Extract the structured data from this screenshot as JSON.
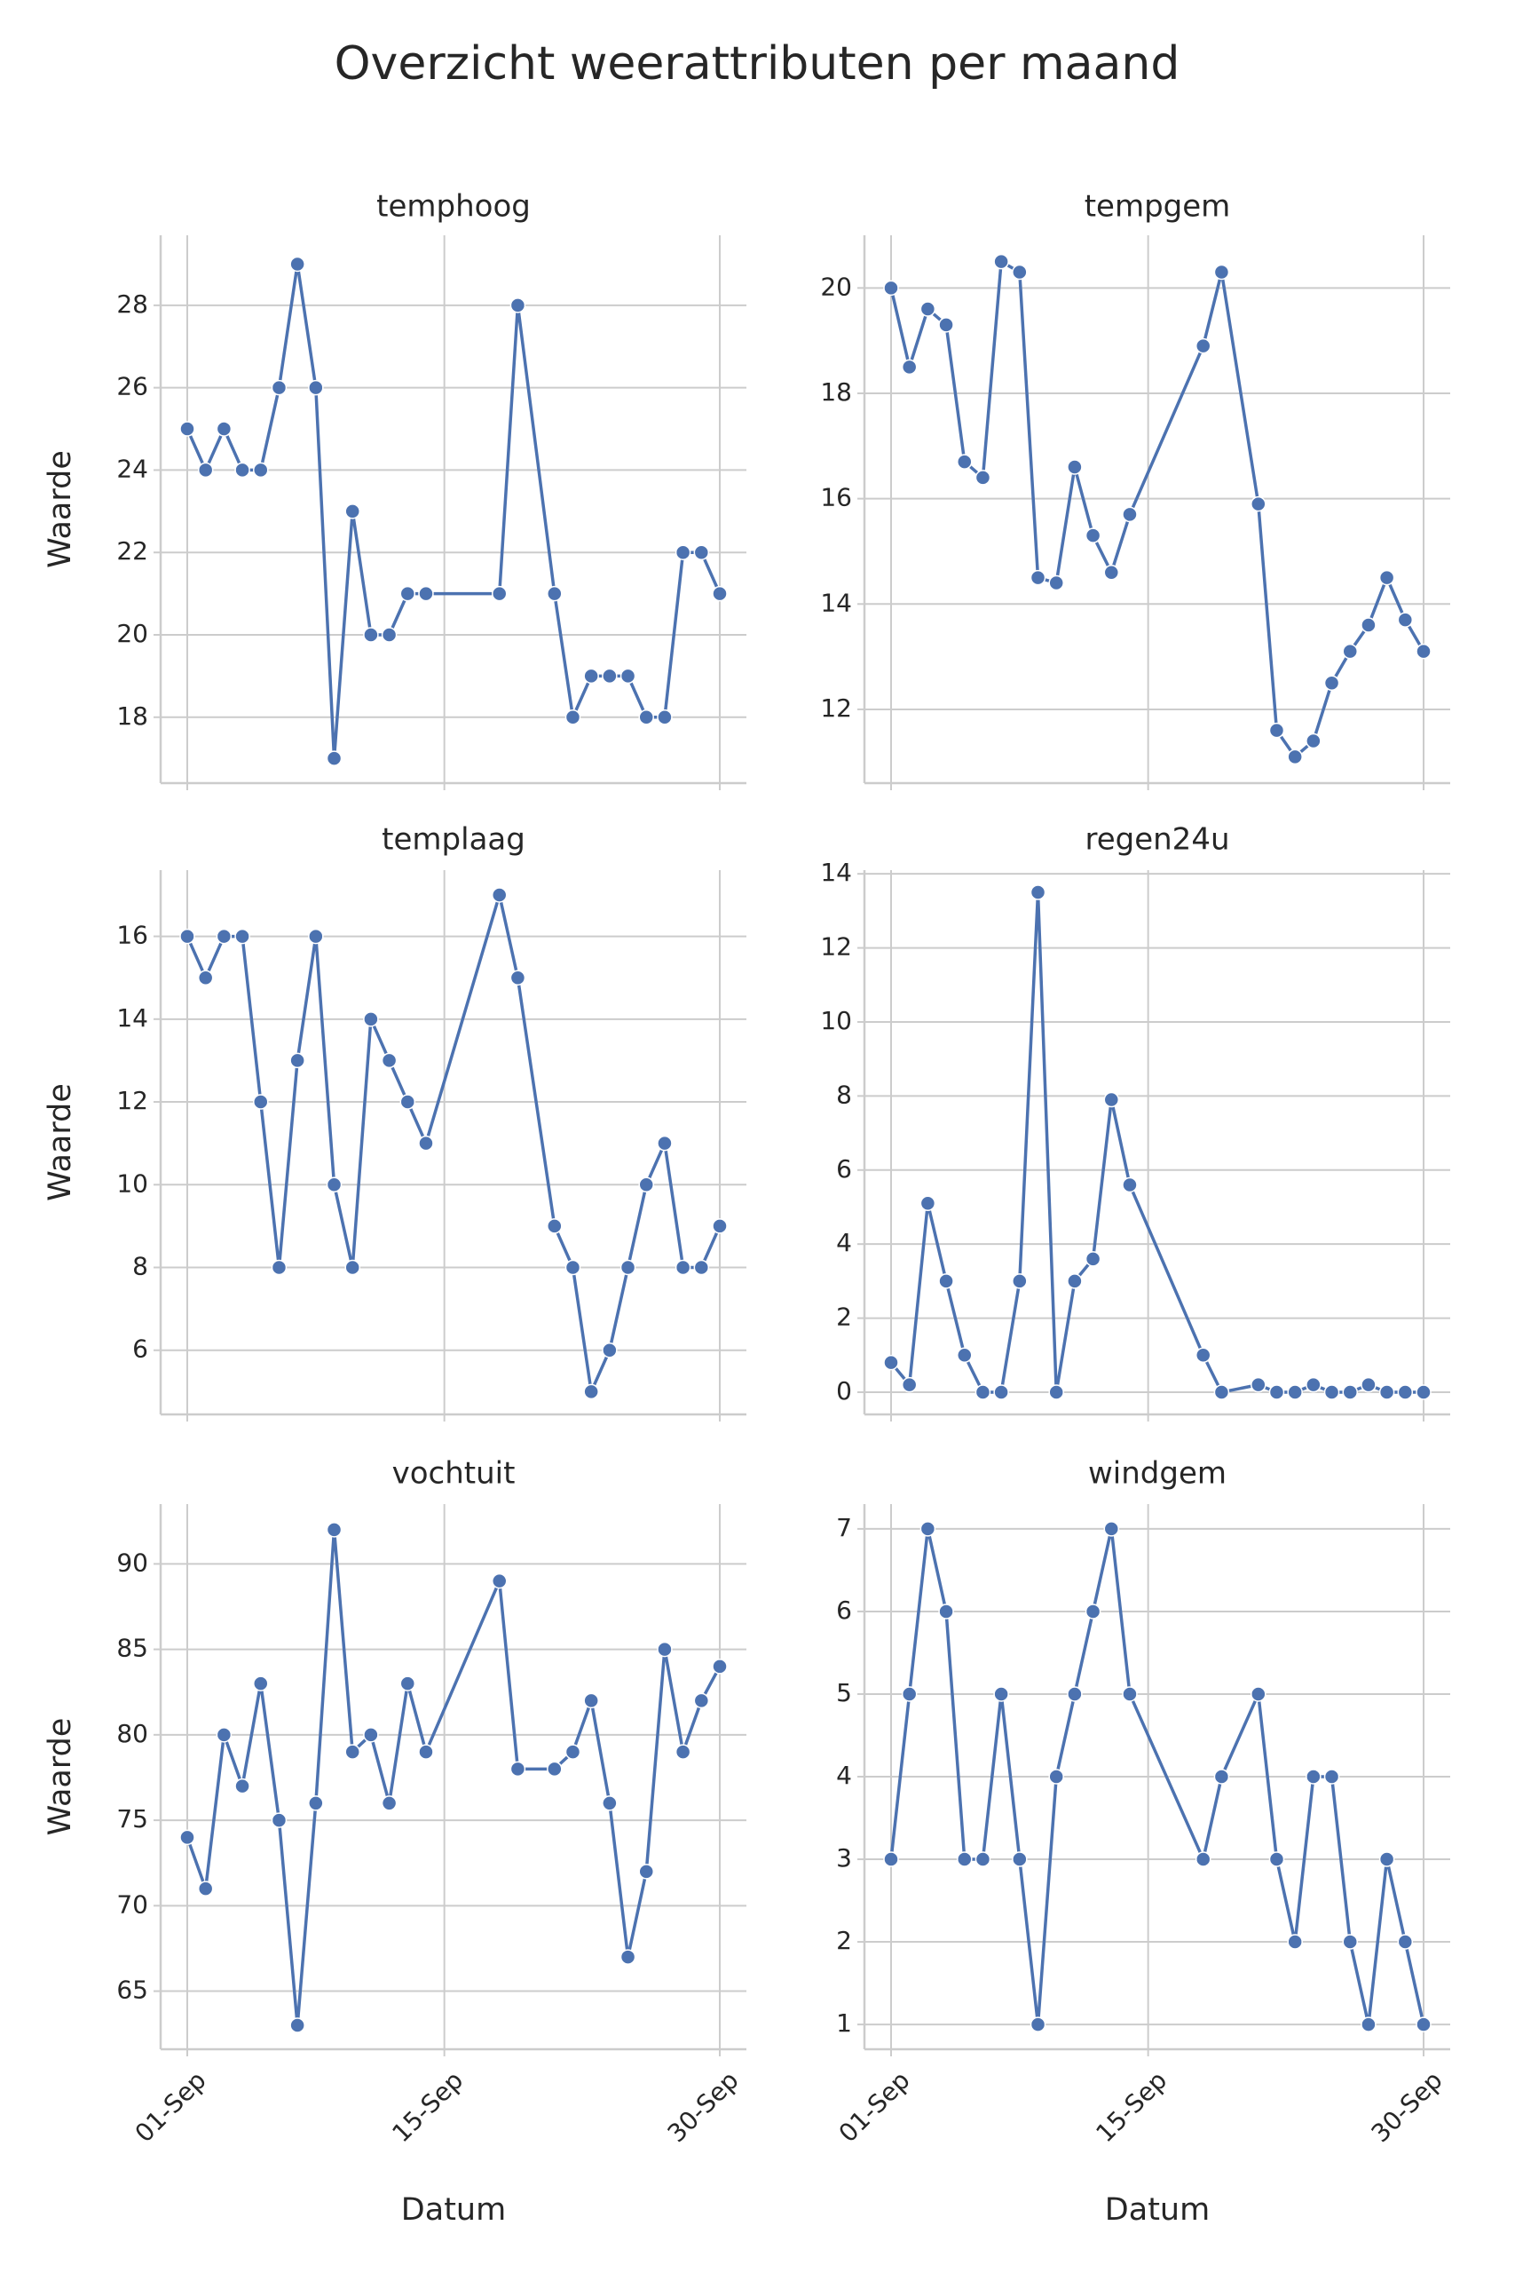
{
  "title": "Overzicht weerattributen per maand",
  "chart_data": [
    {
      "type": "line",
      "title": "temphoog",
      "ylabel": "Waarde",
      "color": "#4c72b0",
      "grid": true,
      "x": [
        "01-Sep",
        "02-Sep",
        "03-Sep",
        "04-Sep",
        "05-Sep",
        "06-Sep",
        "07-Sep",
        "08-Sep",
        "09-Sep",
        "10-Sep",
        "11-Sep",
        "12-Sep",
        "13-Sep",
        "14-Sep",
        "18-Sep",
        "19-Sep",
        "21-Sep",
        "22-Sep",
        "23-Sep",
        "24-Sep",
        "25-Sep",
        "26-Sep",
        "27-Sep",
        "28-Sep",
        "29-Sep",
        "30-Sep"
      ],
      "values": [
        25,
        24,
        25,
        24,
        24,
        26,
        29,
        26,
        17,
        23,
        20,
        20,
        21,
        21,
        21,
        28,
        21,
        18,
        19,
        19,
        19,
        18,
        18,
        22,
        22,
        21
      ],
      "xticks": [
        "01-Sep",
        "15-Sep",
        "30-Sep"
      ],
      "ylim": [
        16.4,
        29.7
      ],
      "yticks": [
        18,
        20,
        22,
        24,
        26,
        28
      ]
    },
    {
      "type": "line",
      "title": "tempgem",
      "color": "#4c72b0",
      "grid": true,
      "x": [
        "01-Sep",
        "02-Sep",
        "03-Sep",
        "04-Sep",
        "05-Sep",
        "06-Sep",
        "07-Sep",
        "08-Sep",
        "09-Sep",
        "10-Sep",
        "11-Sep",
        "12-Sep",
        "13-Sep",
        "14-Sep",
        "18-Sep",
        "19-Sep",
        "21-Sep",
        "22-Sep",
        "23-Sep",
        "24-Sep",
        "25-Sep",
        "26-Sep",
        "27-Sep",
        "28-Sep",
        "29-Sep",
        "30-Sep"
      ],
      "values": [
        20,
        18.5,
        19.6,
        19.3,
        16.7,
        16.4,
        20.5,
        20.3,
        14.5,
        14.4,
        16.6,
        15.3,
        14.6,
        15.7,
        18.9,
        20.3,
        15.9,
        11.6,
        11.1,
        11.4,
        12.5,
        13.1,
        13.6,
        14.5,
        13.7,
        13.1
      ],
      "xticks": [
        "01-Sep",
        "15-Sep",
        "30-Sep"
      ],
      "ylim": [
        10.6,
        21.0
      ],
      "yticks": [
        12,
        14,
        16,
        18,
        20
      ]
    },
    {
      "type": "line",
      "title": "templaag",
      "ylabel": "Waarde",
      "color": "#4c72b0",
      "grid": true,
      "x": [
        "01-Sep",
        "02-Sep",
        "03-Sep",
        "04-Sep",
        "05-Sep",
        "06-Sep",
        "07-Sep",
        "08-Sep",
        "09-Sep",
        "10-Sep",
        "11-Sep",
        "12-Sep",
        "13-Sep",
        "14-Sep",
        "18-Sep",
        "19-Sep",
        "21-Sep",
        "22-Sep",
        "23-Sep",
        "24-Sep",
        "25-Sep",
        "26-Sep",
        "27-Sep",
        "28-Sep",
        "29-Sep",
        "30-Sep"
      ],
      "values": [
        16,
        15,
        16,
        16,
        12,
        8,
        13,
        16,
        10,
        8,
        14,
        13,
        12,
        11,
        17,
        15,
        9,
        8,
        5,
        6,
        8,
        10,
        11,
        8,
        8,
        9
      ],
      "xticks": [
        "01-Sep",
        "15-Sep",
        "30-Sep"
      ],
      "ylim": [
        4.45,
        17.6
      ],
      "yticks": [
        6,
        8,
        10,
        12,
        14,
        16
      ]
    },
    {
      "type": "line",
      "title": "regen24u",
      "color": "#4c72b0",
      "grid": true,
      "x": [
        "01-Sep",
        "02-Sep",
        "03-Sep",
        "04-Sep",
        "05-Sep",
        "06-Sep",
        "07-Sep",
        "08-Sep",
        "09-Sep",
        "10-Sep",
        "11-Sep",
        "12-Sep",
        "13-Sep",
        "14-Sep",
        "18-Sep",
        "19-Sep",
        "21-Sep",
        "22-Sep",
        "23-Sep",
        "24-Sep",
        "25-Sep",
        "26-Sep",
        "27-Sep",
        "28-Sep",
        "29-Sep",
        "30-Sep"
      ],
      "values": [
        0.8,
        0.2,
        5.1,
        3,
        1,
        0,
        0,
        3,
        13.5,
        0,
        3,
        3.6,
        7.9,
        5.6,
        1,
        0,
        0.2,
        0,
        0,
        0.2,
        0,
        0,
        0.2,
        0,
        0,
        0
      ],
      "xticks": [
        "01-Sep",
        "15-Sep",
        "30-Sep"
      ],
      "ylim": [
        -0.6,
        14.1
      ],
      "yticks": [
        0,
        2,
        4,
        6,
        8,
        10,
        12,
        14
      ]
    },
    {
      "type": "line",
      "title": "vochtuit",
      "ylabel": "Waarde",
      "xlabel": "Datum",
      "color": "#4c72b0",
      "grid": true,
      "x": [
        "01-Sep",
        "02-Sep",
        "03-Sep",
        "04-Sep",
        "05-Sep",
        "06-Sep",
        "07-Sep",
        "08-Sep",
        "09-Sep",
        "10-Sep",
        "11-Sep",
        "12-Sep",
        "13-Sep",
        "14-Sep",
        "18-Sep",
        "19-Sep",
        "21-Sep",
        "22-Sep",
        "23-Sep",
        "24-Sep",
        "25-Sep",
        "26-Sep",
        "27-Sep",
        "28-Sep",
        "29-Sep",
        "30-Sep"
      ],
      "values": [
        74,
        71,
        80,
        77,
        83,
        75,
        63,
        76,
        92,
        79,
        80,
        76,
        83,
        79,
        89,
        78,
        78,
        79,
        82,
        76,
        67,
        72,
        85,
        79,
        82,
        84
      ],
      "xticks": [
        "01-Sep",
        "15-Sep",
        "30-Sep"
      ],
      "ylim": [
        61.6,
        93.5
      ],
      "yticks": [
        65,
        70,
        75,
        80,
        85,
        90
      ]
    },
    {
      "type": "line",
      "title": "windgem",
      "xlabel": "Datum",
      "color": "#4c72b0",
      "grid": true,
      "x": [
        "01-Sep",
        "02-Sep",
        "03-Sep",
        "04-Sep",
        "05-Sep",
        "06-Sep",
        "07-Sep",
        "08-Sep",
        "09-Sep",
        "10-Sep",
        "11-Sep",
        "12-Sep",
        "13-Sep",
        "14-Sep",
        "18-Sep",
        "19-Sep",
        "21-Sep",
        "22-Sep",
        "23-Sep",
        "24-Sep",
        "25-Sep",
        "26-Sep",
        "27-Sep",
        "28-Sep",
        "29-Sep",
        "30-Sep"
      ],
      "values": [
        3,
        5,
        7,
        6,
        3,
        3,
        5,
        3,
        1,
        4,
        5,
        6,
        7,
        5,
        3,
        4,
        5,
        3,
        2,
        4,
        4,
        2,
        1,
        3,
        2,
        1
      ],
      "xticks": [
        "01-Sep",
        "15-Sep",
        "30-Sep"
      ],
      "ylim": [
        0.7,
        7.3
      ],
      "yticks": [
        1,
        2,
        3,
        4,
        5,
        6,
        7
      ]
    }
  ]
}
